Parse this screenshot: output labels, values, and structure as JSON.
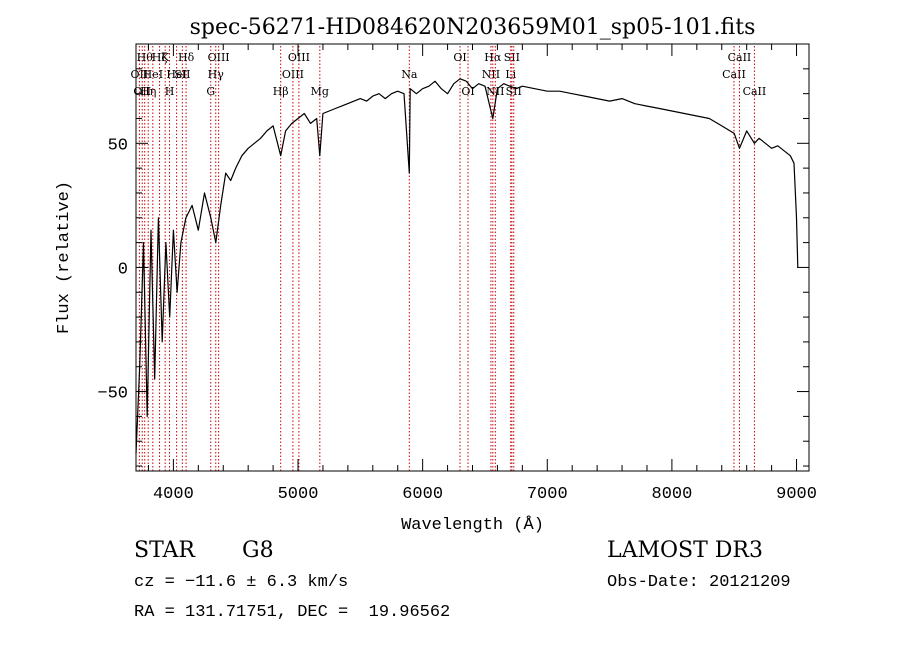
{
  "chart_data": {
    "type": "line",
    "title": "spec-56271-HD084620N203659M01_sp05-101.fits",
    "xlabel": "Wavelength (Å)",
    "ylabel": "Flux (relative)",
    "xlim": [
      3700,
      9100
    ],
    "ylim": [
      -82,
      90
    ],
    "xticks": [
      4000,
      5000,
      6000,
      7000,
      8000,
      9000
    ],
    "xtick_labels": [
      "4000",
      "5000",
      "6000",
      "7000",
      "8000",
      "9000"
    ],
    "yticks": [
      -50,
      0,
      50
    ],
    "ytick_labels": [
      "−50",
      "0",
      "50"
    ],
    "grid": false,
    "series": [
      {
        "name": "flux",
        "x": [
          3700,
          3730,
          3760,
          3790,
          3820,
          3850,
          3880,
          3910,
          3940,
          3970,
          4000,
          4030,
          4060,
          4100,
          4150,
          4200,
          4250,
          4300,
          4340,
          4380,
          4420,
          4460,
          4500,
          4550,
          4600,
          4650,
          4700,
          4750,
          4800,
          4861,
          4900,
          4950,
          5000,
          5050,
          5100,
          5150,
          5175,
          5200,
          5250,
          5300,
          5350,
          5400,
          5450,
          5500,
          5550,
          5600,
          5650,
          5700,
          5750,
          5800,
          5850,
          5893,
          5900,
          5950,
          6000,
          6050,
          6100,
          6150,
          6200,
          6250,
          6300,
          6350,
          6400,
          6450,
          6500,
          6563,
          6600,
          6650,
          6700,
          6750,
          6800,
          6900,
          7000,
          7100,
          7200,
          7300,
          7400,
          7500,
          7600,
          7700,
          7800,
          7900,
          8000,
          8100,
          8200,
          8300,
          8400,
          8500,
          8542,
          8600,
          8662,
          8700,
          8750,
          8800,
          8850,
          8900,
          8950,
          8980,
          9000,
          9010
        ],
        "values": [
          -75,
          -40,
          10,
          -60,
          15,
          -45,
          20,
          -30,
          10,
          -20,
          15,
          -10,
          10,
          20,
          25,
          15,
          30,
          20,
          10,
          25,
          38,
          35,
          40,
          45,
          48,
          50,
          52,
          55,
          57,
          45,
          55,
          58,
          60,
          62,
          58,
          60,
          45,
          62,
          63,
          64,
          65,
          66,
          67,
          68,
          67,
          69,
          70,
          68,
          70,
          71,
          70,
          38,
          72,
          70,
          72,
          73,
          75,
          72,
          70,
          74,
          76,
          75,
          72,
          74,
          73,
          60,
          72,
          74,
          73,
          72,
          73,
          72,
          71,
          71,
          70,
          69,
          68,
          67,
          68,
          66,
          65,
          64,
          63,
          62,
          61,
          60,
          57,
          54,
          48,
          55,
          50,
          52,
          50,
          48,
          49,
          47,
          45,
          42,
          20,
          0
        ]
      }
    ],
    "lines": [
      {
        "w": 3727,
        "label": "OII",
        "row": 2
      },
      {
        "w": 3750,
        "label": "OII",
        "row": 3
      },
      {
        "w": 3770,
        "label": "Hθ",
        "row": 1
      },
      {
        "w": 3798,
        "label": "Hη",
        "row": 3
      },
      {
        "w": 3835,
        "label": "HeI",
        "row": 2
      },
      {
        "w": 3889,
        "label": "Hζ",
        "row": 1
      },
      {
        "w": 3934,
        "label": "K",
        "row": 1
      },
      {
        "w": 3969,
        "label": "H",
        "row": 3
      },
      {
        "w": 4026,
        "label": "HeI",
        "row": 2
      },
      {
        "w": 4072,
        "label": "SII",
        "row": 2
      },
      {
        "w": 4102,
        "label": "Hδ",
        "row": 1
      },
      {
        "w": 4300,
        "label": "G",
        "row": 3
      },
      {
        "w": 4340,
        "label": "Hγ",
        "row": 2
      },
      {
        "w": 4363,
        "label": "OIII",
        "row": 1
      },
      {
        "w": 4861,
        "label": "Hβ",
        "row": 3
      },
      {
        "w": 4959,
        "label": "OIII",
        "row": 2
      },
      {
        "w": 5007,
        "label": "OIII",
        "row": 1
      },
      {
        "w": 5175,
        "label": "Mg",
        "row": 3
      },
      {
        "w": 5893,
        "label": "Na",
        "row": 2
      },
      {
        "w": 6300,
        "label": "OI",
        "row": 1
      },
      {
        "w": 6364,
        "label": "OI",
        "row": 3
      },
      {
        "w": 6548,
        "label": "NII",
        "row": 2
      },
      {
        "w": 6563,
        "label": "Hα",
        "row": 1
      },
      {
        "w": 6583,
        "label": "NII",
        "row": 3
      },
      {
        "w": 6707,
        "label": "Li",
        "row": 2
      },
      {
        "w": 6716,
        "label": "SII",
        "row": 1
      },
      {
        "w": 6731,
        "label": "SII",
        "row": 3
      },
      {
        "w": 8498,
        "label": "CaII",
        "row": 2
      },
      {
        "w": 8542,
        "label": "CaII",
        "row": 1
      },
      {
        "w": 8662,
        "label": "CaII",
        "row": 3
      }
    ]
  },
  "info": {
    "object_class": "STAR",
    "subclass": "G8",
    "survey": "LAMOST DR3",
    "cz": "cz = −11.6 ± 6.3 km/s",
    "obs_date": "Obs-Date: 20121209",
    "coords": "RA = 131.71751, DEC =  19.96562"
  },
  "colors": {
    "line": "#000000",
    "marker": "#cc0000"
  }
}
